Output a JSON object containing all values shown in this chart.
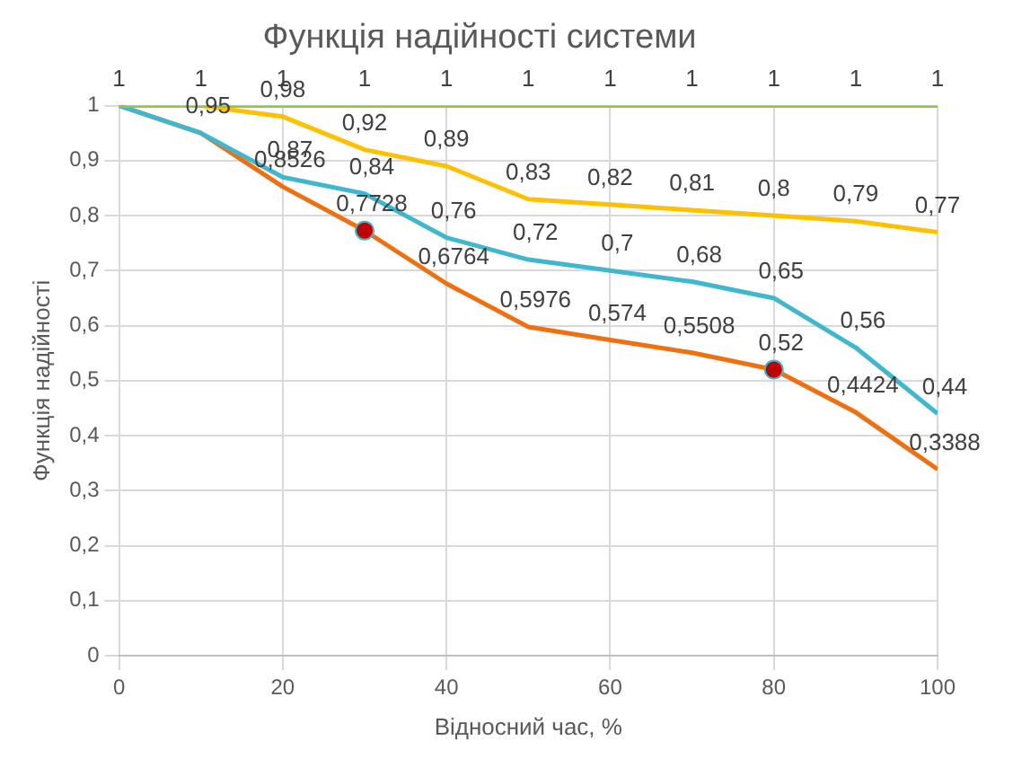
{
  "chart_data": {
    "type": "line",
    "title": "Функція надійності системи",
    "xlabel": "Відносний час, %",
    "ylabel": "Функція надійності",
    "x": [
      0,
      10,
      20,
      30,
      40,
      50,
      60,
      70,
      80,
      90,
      100
    ],
    "xlim": [
      0,
      100
    ],
    "xticks": [
      0,
      20,
      40,
      60,
      80,
      100
    ],
    "ylim": [
      0,
      1
    ],
    "yticks": [
      {
        "value": 0,
        "label": "0"
      },
      {
        "value": 0.1,
        "label": "0,1"
      },
      {
        "value": 0.2,
        "label": "0,2"
      },
      {
        "value": 0.3,
        "label": "0,3"
      },
      {
        "value": 0.4,
        "label": "0,4"
      },
      {
        "value": 0.5,
        "label": "0,5"
      },
      {
        "value": 0.6,
        "label": "0,6"
      },
      {
        "value": 0.7,
        "label": "0,7"
      },
      {
        "value": 0.8,
        "label": "0,8"
      },
      {
        "value": 0.9,
        "label": "0,9"
      },
      {
        "value": 1,
        "label": "1"
      }
    ],
    "grid": true,
    "legend": false,
    "marker": "none",
    "line_style": "solid",
    "series": [
      {
        "color": "#92c83e",
        "values": [
          1,
          1,
          1,
          1,
          1,
          1,
          1,
          1,
          1,
          1,
          1
        ],
        "value_labels": [
          "1",
          "1",
          "1",
          "1",
          "1",
          "1",
          "1",
          "1",
          "1",
          "1",
          "1"
        ]
      },
      {
        "color": "#ffc000",
        "values": [
          null,
          1,
          0.98,
          0.92,
          0.89,
          0.83,
          0.82,
          0.81,
          0.8,
          0.79,
          0.77
        ],
        "value_labels": [
          null,
          null,
          "0,98",
          "0,92",
          "0,89",
          "0,83",
          "0,82",
          "0,81",
          "0,8",
          "0,79",
          "0,77"
        ]
      },
      {
        "color": "#3eb7cf",
        "values": [
          1,
          0.95,
          0.87,
          0.84,
          0.76,
          0.72,
          0.7,
          0.68,
          0.65,
          0.56,
          0.44
        ],
        "value_labels": [
          null,
          null,
          "0,87",
          "0,84",
          "0,76",
          "0,72",
          "0,7",
          "0,68",
          "0,65",
          "0,56",
          "0,44"
        ]
      },
      {
        "color": "#f07010",
        "values": [
          1,
          0.95,
          0.8526,
          0.7728,
          0.6764,
          0.5976,
          0.574,
          0.5508,
          0.52,
          0.4424,
          0.3388
        ],
        "value_labels": [
          null,
          "0,95",
          "0,8526",
          "0,7728",
          "0,6764",
          "0,5976",
          "0,574",
          "0,5508",
          "0,52",
          "0,4424",
          "0,3388"
        ]
      },
      {
        "type": "scatter",
        "marker": "circle",
        "color": "#c00000",
        "x": [
          30,
          80
        ],
        "values": [
          0.7728,
          0.52
        ]
      }
    ]
  }
}
